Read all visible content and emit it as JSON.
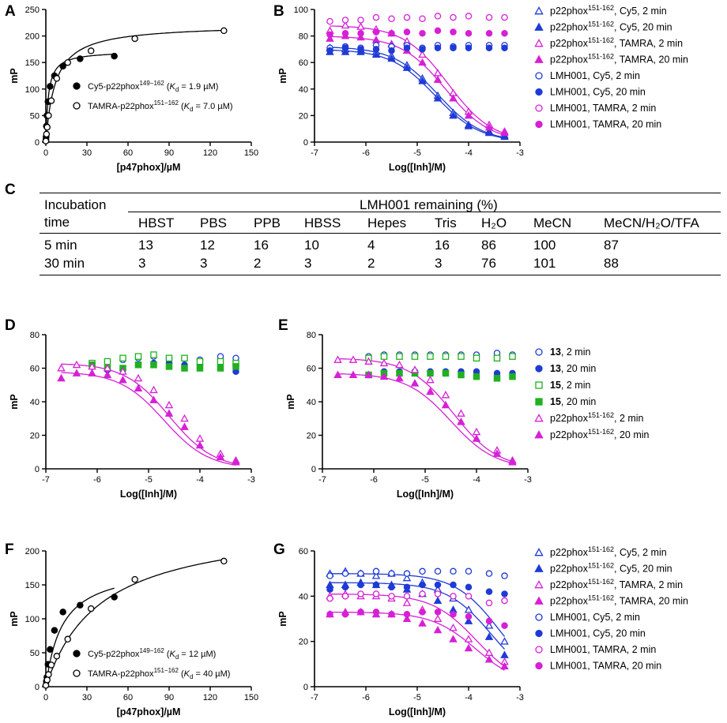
{
  "figure": {
    "panel_labels": {
      "a": "A",
      "b": "B",
      "c": "C",
      "d": "D",
      "e": "E",
      "f": "F",
      "g": "G"
    }
  },
  "chart_data": [
    {
      "panel": "A",
      "type": "scatter",
      "xlabel": "[p47phox]/µM",
      "ylabel": "mP",
      "xlim": [
        0,
        150
      ],
      "ylim": [
        0,
        250
      ],
      "xticks": [
        0,
        30,
        60,
        90,
        120,
        150
      ],
      "yticks": [
        0,
        50,
        100,
        150,
        200,
        250
      ],
      "series": [
        {
          "name": "Cy5-p22phox",
          "name_sup": "149−162",
          "kd_text": "= 1.9 µM)",
          "marker": "filled-circle",
          "color": "#000000",
          "bmax": 172,
          "kd": 1.9,
          "x": [
            0,
            0.1,
            0.2,
            0.4,
            0.8,
            1.6,
            3.1,
            6.3,
            12.5,
            25,
            50
          ],
          "y": [
            2,
            5,
            10,
            30,
            50,
            76,
            105,
            125,
            143,
            157,
            162
          ]
        },
        {
          "name": "TAMRA-p22phox",
          "name_sup": "151−162",
          "kd_text": "= 7.0 µM)",
          "marker": "open-circle",
          "color": "#000000",
          "bmax": 222,
          "kd": 7.0,
          "x": [
            0,
            0.5,
            1,
            2,
            4,
            8,
            16,
            33,
            65,
            130
          ],
          "y": [
            2,
            15,
            28,
            50,
            78,
            120,
            150,
            172,
            195,
            210
          ]
        }
      ]
    },
    {
      "panel": "B",
      "type": "scatter",
      "xlabel": "Log([Inh]/M)",
      "ylabel": "mP",
      "xlim": [
        -7,
        -3
      ],
      "ylim": [
        0,
        100
      ],
      "xticks": [
        -7,
        -6,
        -5,
        -4,
        -3
      ],
      "yticks": [
        0,
        20,
        40,
        60,
        80,
        100
      ],
      "x": [
        -6.7,
        -6.4,
        -6.1,
        -5.8,
        -5.5,
        -5.2,
        -4.9,
        -4.6,
        -4.3,
        -4.0,
        -3.6,
        -3.3
      ],
      "series": [
        {
          "name": "p22phox",
          "sup": "151-162",
          "suffix": ", Cy5, 2 min",
          "marker": "open-triangle",
          "color": "#1f3ad6",
          "fit": {
            "top": 72,
            "bottom": 0,
            "ic50": -4.6,
            "hill": 1
          },
          "y": [
            71,
            70,
            70,
            68,
            65,
            58,
            48,
            35,
            22,
            13,
            8,
            5
          ]
        },
        {
          "name": "p22phox",
          "sup": "151-162",
          "suffix": ", Cy5, 20 min",
          "marker": "filled-triangle",
          "color": "#1f3ad6",
          "fit": {
            "top": 70,
            "bottom": 0,
            "ic50": -4.65,
            "hill": 1
          },
          "y": [
            68,
            68,
            68,
            66,
            63,
            56,
            46,
            33,
            20,
            12,
            7,
            4
          ]
        },
        {
          "name": "p22phox",
          "sup": "151-162",
          "suffix": ", TAMRA, 2 min",
          "marker": "open-triangle",
          "color": "#d620d6",
          "fit": {
            "top": 88,
            "bottom": 0,
            "ic50": -4.4,
            "hill": 1
          },
          "y": [
            84,
            88,
            87,
            85,
            82,
            76,
            66,
            52,
            37,
            23,
            13,
            8
          ]
        },
        {
          "name": "p22phox",
          "sup": "151-162",
          "suffix": ", TAMRA, 20 min",
          "marker": "filled-triangle",
          "color": "#d620d6",
          "fit": {
            "top": 80,
            "bottom": 0,
            "ic50": -4.45,
            "hill": 1
          },
          "y": [
            78,
            80,
            79,
            77,
            74,
            69,
            60,
            47,
            33,
            20,
            11,
            7
          ]
        },
        {
          "name": "LMH001",
          "sup": "",
          "suffix": ", Cy5, 2 min",
          "marker": "open-circle",
          "color": "#1f3ad6",
          "y": [
            71,
            72,
            71,
            73,
            72,
            73,
            71,
            73,
            72,
            73,
            73,
            73
          ]
        },
        {
          "name": "LMH001",
          "sup": "",
          "suffix": ", Cy5, 20 min",
          "marker": "filled-circle",
          "color": "#1f3ad6",
          "y": [
            69,
            71,
            70,
            70,
            69,
            71,
            70,
            71,
            71,
            71,
            71,
            71
          ]
        },
        {
          "name": "LMH001",
          "sup": "",
          "suffix": ", TAMRA, 2 min",
          "marker": "open-circle",
          "color": "#d620d6",
          "y": [
            91,
            92,
            92,
            94,
            93,
            94,
            93,
            95,
            94,
            95,
            94,
            94
          ]
        },
        {
          "name": "LMH001",
          "sup": "",
          "suffix": ", TAMRA, 20 min",
          "marker": "filled-circle",
          "color": "#d620d6",
          "y": [
            81,
            82,
            82,
            83,
            82,
            83,
            82,
            84,
            83,
            82,
            82,
            82
          ]
        }
      ]
    },
    {
      "panel": "D",
      "type": "scatter",
      "xlabel": "Log([Inh]/M)",
      "ylabel": "mP",
      "xlim": [
        -7,
        -3
      ],
      "ylim": [
        0,
        80
      ],
      "xticks": [
        -7,
        -6,
        -5,
        -4,
        -3
      ],
      "yticks": [
        0,
        20,
        40,
        60,
        80
      ],
      "x": [
        -6.7,
        -6.4,
        -6.1,
        -5.8,
        -5.5,
        -5.2,
        -4.9,
        -4.6,
        -4.3,
        -4.0,
        -3.6,
        -3.3
      ],
      "series": [
        {
          "name": "13, 2 min",
          "marker": "open-circle",
          "color": "#1f3ad6",
          "y": [
            null,
            null,
            63,
            64,
            65,
            66,
            67,
            66,
            66,
            65,
            67,
            66
          ]
        },
        {
          "name": "13, 20 min",
          "marker": "filled-circle",
          "color": "#1f3ad6",
          "y": [
            null,
            null,
            61,
            59,
            59,
            62,
            63,
            63,
            62,
            62,
            61,
            58
          ]
        },
        {
          "name": "15, 2 min",
          "marker": "open-square",
          "color": "#20b020",
          "y": [
            null,
            null,
            63,
            64,
            66,
            67,
            68,
            66,
            66,
            64,
            64,
            63
          ]
        },
        {
          "name": "15, 20 min",
          "marker": "filled-square",
          "color": "#20b020",
          "y": [
            null,
            null,
            62,
            60,
            60,
            62,
            62,
            61,
            60,
            60,
            60,
            61
          ]
        },
        {
          "name": "p22phox 151-162, 2 min",
          "marker": "open-triangle",
          "color": "#d620d6",
          "fit": {
            "top": 63,
            "bottom": 0,
            "ic50": -4.6,
            "hill": 1
          },
          "y": [
            60,
            62,
            61,
            60,
            58,
            54,
            47,
            38,
            30,
            18,
            9,
            5
          ]
        },
        {
          "name": "p22phox 151-162, 20 min",
          "marker": "filled-triangle",
          "color": "#d620d6",
          "fit": {
            "top": 58,
            "bottom": 0,
            "ic50": -4.7,
            "hill": 1
          },
          "y": [
            54,
            57,
            57,
            56,
            53,
            48,
            41,
            33,
            25,
            14,
            7,
            4
          ]
        }
      ]
    },
    {
      "panel": "E",
      "type": "scatter",
      "xlabel": "Log([Inh]/M)",
      "ylabel": "mP",
      "xlim": [
        -7,
        -3
      ],
      "ylim": [
        0,
        80
      ],
      "xticks": [
        -7,
        -6,
        -5,
        -4,
        -3
      ],
      "yticks": [
        0,
        20,
        40,
        60,
        80
      ],
      "x": [
        -6.7,
        -6.4,
        -6.1,
        -5.8,
        -5.5,
        -5.2,
        -4.9,
        -4.6,
        -4.3,
        -4.0,
        -3.6,
        -3.3
      ],
      "series": [
        {
          "name": "13",
          "suffix": ", 2 min",
          "marker": "open-circle",
          "color": "#1f3ad6",
          "y": [
            null,
            null,
            67,
            68,
            68,
            68,
            68,
            68,
            68,
            68,
            69,
            68
          ]
        },
        {
          "name": "13",
          "suffix": ", 20 min",
          "marker": "filled-circle",
          "color": "#1f3ad6",
          "y": [
            null,
            null,
            56,
            58,
            58,
            58,
            58,
            58,
            58,
            58,
            57,
            57
          ]
        },
        {
          "name": "15",
          "suffix": ", 2 min",
          "marker": "open-square",
          "color": "#20b020",
          "y": [
            null,
            null,
            66,
            67,
            67,
            67,
            67,
            67,
            67,
            66,
            66,
            67
          ]
        },
        {
          "name": "15",
          "suffix": ", 20 min",
          "marker": "filled-square",
          "color": "#20b020",
          "y": [
            null,
            null,
            56,
            57,
            57,
            57,
            57,
            57,
            56,
            55,
            54,
            55
          ]
        },
        {
          "name": "p22phox",
          "sup": "151-162",
          "suffix": ", 2 min",
          "marker": "open-triangle",
          "color": "#d620d6",
          "fit": {
            "top": 66,
            "bottom": 0,
            "ic50": -4.45,
            "hill": 1
          },
          "y": [
            65,
            65,
            64,
            63,
            62,
            59,
            53,
            44,
            33,
            22,
            11,
            5
          ]
        },
        {
          "name": "p22phox",
          "sup": "151-162",
          "suffix": ", 20 min",
          "marker": "filled-triangle",
          "color": "#d620d6",
          "fit": {
            "top": 57,
            "bottom": 0,
            "ic50": -4.5,
            "hill": 1
          },
          "y": [
            56,
            56,
            56,
            55,
            54,
            51,
            46,
            38,
            28,
            18,
            9,
            4
          ]
        }
      ]
    },
    {
      "panel": "F",
      "type": "scatter",
      "xlabel": "[p47phox]/µM",
      "ylabel": "mP",
      "xlim": [
        0,
        150
      ],
      "ylim": [
        0,
        200
      ],
      "xticks": [
        0,
        30,
        60,
        90,
        120,
        150
      ],
      "yticks": [
        0,
        50,
        100,
        150,
        200
      ],
      "series": [
        {
          "name": "Cy5-p22phox",
          "name_sup": "149−162",
          "kd_text": "= 12 µM)",
          "marker": "filled-circle",
          "color": "#000000",
          "bmax": 180,
          "kd": 12,
          "x": [
            0,
            0.4,
            0.8,
            1.6,
            3.1,
            6.3,
            12.5,
            25,
            50
          ],
          "y": [
            2,
            8,
            14,
            33,
            55,
            83,
            110,
            120,
            132
          ]
        },
        {
          "name": "TAMRA-p22phox",
          "name_sup": "151−162",
          "kd_text": "= 40 µM)",
          "marker": "open-circle",
          "color": "#000000",
          "bmax": 245,
          "kd": 40,
          "x": [
            0,
            1,
            2,
            4,
            8,
            16,
            33,
            65,
            130
          ],
          "y": [
            2,
            10,
            18,
            32,
            45,
            70,
            115,
            158,
            185
          ]
        }
      ]
    },
    {
      "panel": "G",
      "type": "scatter",
      "xlabel": "Log([Inh]/M)",
      "ylabel": "mP",
      "xlim": [
        -7,
        -3
      ],
      "ylim": [
        0,
        60
      ],
      "xticks": [
        -7,
        -6,
        -5,
        -4,
        -3
      ],
      "yticks": [
        0,
        20,
        40,
        60
      ],
      "x": [
        -6.7,
        -6.4,
        -6.1,
        -5.8,
        -5.5,
        -5.2,
        -4.9,
        -4.6,
        -4.3,
        -4.0,
        -3.6,
        -3.3
      ],
      "series": [
        {
          "name": "p22phox",
          "sup": "151-162",
          "suffix": ", Cy5, 2 min",
          "marker": "open-triangle",
          "color": "#1f3ad6",
          "fit": {
            "top": 50,
            "bottom": 0,
            "ic50": -3.4,
            "hill": 1
          },
          "y": [
            50,
            51,
            50,
            49,
            50,
            48,
            46,
            43,
            39,
            34,
            27,
            20
          ]
        },
        {
          "name": "p22phox",
          "sup": "151-162",
          "suffix": ", Cy5, 20 min",
          "marker": "filled-triangle",
          "color": "#1f3ad6",
          "fit": {
            "top": 46,
            "bottom": 0,
            "ic50": -3.55,
            "hill": 1
          },
          "y": [
            45,
            45,
            46,
            45,
            45,
            43,
            41,
            38,
            34,
            29,
            22,
            14
          ]
        },
        {
          "name": "p22phox",
          "sup": "151-162",
          "suffix": ", TAMRA, 2 min",
          "marker": "open-triangle",
          "color": "#d620d6",
          "fit": {
            "top": 41,
            "bottom": 0,
            "ic50": -3.85,
            "hill": 1
          },
          "y": [
            40,
            41,
            40,
            40,
            39,
            37,
            34,
            30,
            26,
            21,
            15,
            11
          ]
        },
        {
          "name": "p22phox",
          "sup": "151-162",
          "suffix": ", TAMRA, 20 min",
          "marker": "filled-triangle",
          "color": "#d620d6",
          "fit": {
            "top": 33,
            "bottom": 0,
            "ic50": -3.85,
            "hill": 1
          },
          "y": [
            32,
            33,
            33,
            32,
            32,
            30,
            28,
            25,
            21,
            17,
            12,
            9
          ]
        },
        {
          "name": "LMH001",
          "suffix": ", Cy5, 2 min",
          "marker": "open-circle",
          "color": "#1f3ad6",
          "y": [
            49,
            50,
            50,
            51,
            50,
            50,
            51,
            51,
            51,
            51,
            50,
            49
          ]
        },
        {
          "name": "LMH001",
          "suffix": ", Cy5, 20 min",
          "marker": "filled-circle",
          "color": "#1f3ad6",
          "y": [
            43,
            44,
            45,
            45,
            44,
            44,
            45,
            45,
            45,
            44,
            42,
            41
          ]
        },
        {
          "name": "LMH001",
          "suffix": ", TAMRA, 2 min",
          "marker": "open-circle",
          "color": "#d620d6",
          "y": [
            39,
            40,
            41,
            41,
            40,
            40,
            41,
            41,
            40,
            40,
            37,
            38
          ]
        },
        {
          "name": "LMH001",
          "suffix": ", TAMRA, 20 min",
          "marker": "filled-circle",
          "color": "#d620d6",
          "y": [
            32,
            32,
            33,
            33,
            32,
            32,
            33,
            33,
            32,
            31,
            29,
            27
          ]
        }
      ]
    }
  ],
  "table_c": {
    "header_left": [
      "Incubation",
      "time"
    ],
    "group_header": "LMH001 remaining (%)",
    "columns": [
      "HBST",
      "PBS",
      "PPB",
      "HBSS",
      "Hepes",
      "Tris",
      "H₂O",
      "MeCN",
      "MeCN/H₂O/TFA"
    ],
    "rows": [
      {
        "label": "5 min",
        "values": [
          "13",
          "12",
          "16",
          "10",
          "4",
          "16",
          "86",
          "100",
          "87"
        ]
      },
      {
        "label": "30 min",
        "values": [
          "3",
          "3",
          "2",
          "3",
          "2",
          "3",
          "76",
          "101",
          "88"
        ]
      }
    ]
  }
}
